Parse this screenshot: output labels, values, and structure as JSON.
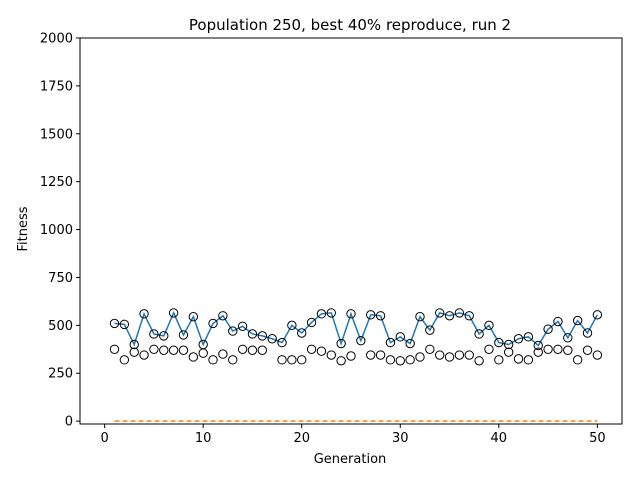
{
  "chart_data": {
    "type": "line",
    "title": "Population 250, best 40% reproduce, run 2",
    "xlabel": "Generation",
    "ylabel": "Fitness",
    "xlim": [
      -2.5,
      52.5
    ],
    "ylim": [
      -15,
      2000
    ],
    "xticks": [
      0,
      10,
      20,
      30,
      40,
      50
    ],
    "yticks": [
      0,
      250,
      500,
      750,
      1000,
      1250,
      1500,
      1750,
      2000
    ],
    "grid": false,
    "x": [
      1,
      2,
      3,
      4,
      5,
      6,
      7,
      8,
      9,
      10,
      11,
      12,
      13,
      14,
      15,
      16,
      17,
      18,
      19,
      20,
      21,
      22,
      23,
      24,
      25,
      26,
      27,
      28,
      29,
      30,
      31,
      32,
      33,
      34,
      35,
      36,
      37,
      38,
      39,
      40,
      41,
      42,
      43,
      44,
      45,
      46,
      47,
      48,
      49,
      50
    ],
    "series": [
      {
        "role": "best",
        "style": "line-with-open-markers",
        "color": "#1f77b4",
        "values": [
          510,
          505,
          400,
          560,
          455,
          445,
          565,
          450,
          545,
          400,
          510,
          550,
          470,
          495,
          455,
          445,
          430,
          410,
          500,
          460,
          515,
          560,
          565,
          405,
          560,
          420,
          555,
          550,
          410,
          440,
          405,
          545,
          475,
          565,
          550,
          565,
          550,
          455,
          500,
          410,
          400,
          430,
          440,
          395,
          480,
          520,
          435,
          525,
          460,
          555
        ]
      },
      {
        "role": "lower",
        "style": "open-markers",
        "values": [
          375,
          320,
          360,
          345,
          375,
          370,
          370,
          370,
          335,
          355,
          320,
          350,
          320,
          375,
          370,
          370,
          null,
          320,
          320,
          320,
          375,
          365,
          345,
          315,
          340,
          null,
          345,
          345,
          320,
          315,
          320,
          335,
          375,
          345,
          335,
          345,
          345,
          315,
          375,
          320,
          360,
          325,
          320,
          360,
          375,
          375,
          370,
          320,
          370,
          345
        ]
      },
      {
        "role": "baseline",
        "style": "dashed",
        "color": "#ff7f0e",
        "values": [
          0,
          0,
          0,
          0,
          0,
          0,
          0,
          0,
          0,
          0,
          0,
          0,
          0,
          0,
          0,
          0,
          0,
          0,
          0,
          0,
          0,
          0,
          0,
          0,
          0,
          0,
          0,
          0,
          0,
          0,
          0,
          0,
          0,
          0,
          0,
          0,
          0,
          0,
          0,
          0,
          0,
          0,
          0,
          0,
          0,
          0,
          0,
          0,
          0,
          0
        ]
      }
    ]
  }
}
